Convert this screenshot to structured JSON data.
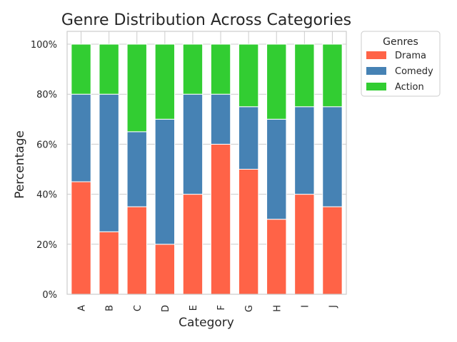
{
  "chart_data": {
    "type": "bar",
    "stacked": true,
    "title": "Genre Distribution Across Categories",
    "xlabel": "Category",
    "ylabel": "Percentage",
    "categories": [
      "A",
      "B",
      "C",
      "D",
      "E",
      "F",
      "G",
      "H",
      "I",
      "J"
    ],
    "series": [
      {
        "name": "Drama",
        "color": "#ff6347",
        "values": [
          45,
          25,
          35,
          20,
          40,
          60,
          50,
          30,
          40,
          35
        ]
      },
      {
        "name": "Comedy",
        "color": "#4682b4",
        "values": [
          35,
          55,
          30,
          50,
          40,
          20,
          25,
          40,
          35,
          40
        ]
      },
      {
        "name": "Action",
        "color": "#32cd32",
        "values": [
          20,
          20,
          35,
          30,
          20,
          20,
          25,
          30,
          25,
          25
        ]
      }
    ],
    "ylim": [
      0,
      100
    ],
    "yticks": [
      "0%",
      "20%",
      "40%",
      "60%",
      "80%",
      "100%"
    ],
    "ytick_values": [
      0,
      20,
      40,
      60,
      80,
      100
    ],
    "grid": true,
    "legend_title": "Genres",
    "legend_position": "outside-top-right"
  }
}
